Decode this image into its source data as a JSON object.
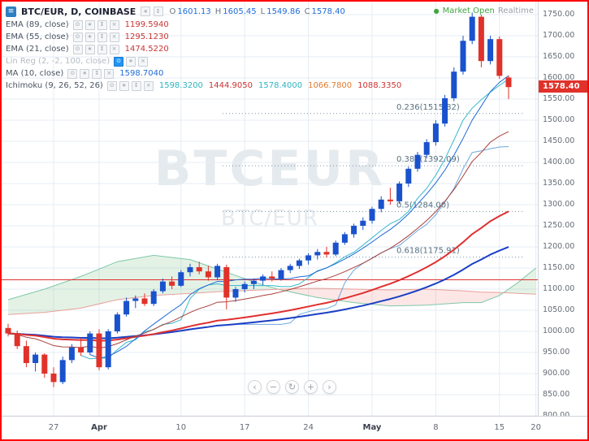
{
  "header": {
    "menu_icon": "menu-icon",
    "symbol_title": "BTC/EUR, D, COINBASE",
    "header_buttons": [
      "gear",
      "arrows"
    ],
    "ohlc": [
      {
        "label": "O",
        "value": "1601.13"
      },
      {
        "label": "H",
        "value": "1605.45"
      },
      {
        "label": "L",
        "value": "1549.86"
      },
      {
        "label": "C",
        "value": "1578.40"
      }
    ],
    "market_status": {
      "open_label": "Market Open",
      "realtime_label": "Realtime",
      "status_color": "#3fa63f"
    }
  },
  "indicators": [
    {
      "name": "EMA (89, close)",
      "buttons": [
        "eye",
        "gear",
        "arrows",
        "close"
      ],
      "disabled": false,
      "values": [
        {
          "text": "1199.5940",
          "color": "#cc3333"
        }
      ]
    },
    {
      "name": "EMA (55, close)",
      "buttons": [
        "eye",
        "gear",
        "arrows",
        "close"
      ],
      "disabled": false,
      "values": [
        {
          "text": "1295.1230",
          "color": "#cc3333"
        }
      ]
    },
    {
      "name": "EMA (21, close)",
      "buttons": [
        "eye",
        "gear",
        "arrows",
        "close"
      ],
      "disabled": false,
      "values": [
        {
          "text": "1474.5220",
          "color": "#cc3333"
        }
      ]
    },
    {
      "name": "Lin Reg (2, -2, 100, close)",
      "buttons": [
        "eye",
        "gear",
        "close"
      ],
      "disabled": true,
      "active_button": "eye",
      "values": []
    },
    {
      "name": "MA (10, close)",
      "buttons": [
        "eye",
        "gear",
        "arrows",
        "close"
      ],
      "disabled": false,
      "values": [
        {
          "text": "1598.7040",
          "color": "#1e6bd6"
        }
      ]
    },
    {
      "name": "Ichimoku (9, 26, 52, 26)",
      "buttons": [
        "eye",
        "gear",
        "arrows",
        "close"
      ],
      "disabled": false,
      "values": [
        {
          "text": "1598.3200",
          "color": "#2eb5c0"
        },
        {
          "text": "1444.9050",
          "color": "#cc3333"
        },
        {
          "text": "1578.4000",
          "color": "#2eb5c0"
        },
        {
          "text": "1066.7800",
          "color": "#e07b2f"
        },
        {
          "text": "1088.3350",
          "color": "#cc3333"
        }
      ]
    }
  ],
  "watermark": {
    "line1": "BTCEUR",
    "line2": "BTC/EUR"
  },
  "nav_buttons": [
    {
      "name": "scroll-left",
      "glyph": "‹"
    },
    {
      "name": "zoom-out",
      "glyph": "−"
    },
    {
      "name": "reset-view",
      "glyph": "↻"
    },
    {
      "name": "zoom-in",
      "glyph": "+"
    },
    {
      "name": "scroll-right",
      "glyph": "›"
    }
  ],
  "chart_data": {
    "type": "candlestick",
    "title": "BTC/EUR Daily, Coinbase",
    "interval": "D",
    "exchange": "COINBASE",
    "last_price": "1578.40",
    "price_axis": {
      "min": 800,
      "max": 1750,
      "step": 50
    },
    "time_ticks": [
      {
        "label": "27",
        "day": 5
      },
      {
        "label": "Apr",
        "day": 10,
        "month": true
      },
      {
        "label": "10",
        "day": 19
      },
      {
        "label": "17",
        "day": 26
      },
      {
        "label": "24",
        "day": 33
      },
      {
        "label": "May",
        "day": 40,
        "month": true
      },
      {
        "label": "8",
        "day": 47
      },
      {
        "label": "15",
        "day": 54
      },
      {
        "label": "20",
        "day": 58
      }
    ],
    "candles": [
      [
        1008,
        1018,
        988,
        995
      ],
      [
        995,
        1002,
        958,
        965
      ],
      [
        965,
        978,
        915,
        925
      ],
      [
        925,
        950,
        905,
        945
      ],
      [
        945,
        948,
        890,
        900
      ],
      [
        900,
        915,
        868,
        880
      ],
      [
        880,
        940,
        875,
        932
      ],
      [
        932,
        970,
        925,
        962
      ],
      [
        962,
        985,
        942,
        950
      ],
      [
        950,
        1000,
        945,
        995
      ],
      [
        995,
        1005,
        908,
        915
      ],
      [
        915,
        1005,
        910,
        1000
      ],
      [
        1000,
        1045,
        995,
        1040
      ],
      [
        1040,
        1080,
        1035,
        1072
      ],
      [
        1072,
        1085,
        1055,
        1078
      ],
      [
        1078,
        1090,
        1060,
        1065
      ],
      [
        1065,
        1100,
        1060,
        1095
      ],
      [
        1095,
        1125,
        1090,
        1118
      ],
      [
        1118,
        1130,
        1100,
        1108
      ],
      [
        1108,
        1145,
        1105,
        1140
      ],
      [
        1140,
        1160,
        1130,
        1152
      ],
      [
        1152,
        1165,
        1135,
        1142
      ],
      [
        1142,
        1155,
        1120,
        1128
      ],
      [
        1128,
        1160,
        1122,
        1155
      ],
      [
        1152,
        1158,
        1052,
        1080
      ],
      [
        1080,
        1105,
        1070,
        1100
      ],
      [
        1100,
        1118,
        1092,
        1112
      ],
      [
        1112,
        1125,
        1100,
        1120
      ],
      [
        1120,
        1135,
        1110,
        1130
      ],
      [
        1130,
        1142,
        1118,
        1125
      ],
      [
        1125,
        1150,
        1120,
        1145
      ],
      [
        1145,
        1160,
        1138,
        1155
      ],
      [
        1155,
        1172,
        1148,
        1168
      ],
      [
        1168,
        1185,
        1158,
        1180
      ],
      [
        1180,
        1195,
        1170,
        1188
      ],
      [
        1188,
        1200,
        1175,
        1182
      ],
      [
        1182,
        1215,
        1178,
        1210
      ],
      [
        1210,
        1235,
        1205,
        1230
      ],
      [
        1230,
        1255,
        1222,
        1250
      ],
      [
        1250,
        1270,
        1240,
        1262
      ],
      [
        1262,
        1295,
        1255,
        1290
      ],
      [
        1290,
        1320,
        1282,
        1312
      ],
      [
        1312,
        1340,
        1300,
        1308
      ],
      [
        1308,
        1355,
        1302,
        1350
      ],
      [
        1350,
        1390,
        1342,
        1385
      ],
      [
        1385,
        1425,
        1378,
        1418
      ],
      [
        1418,
        1455,
        1410,
        1448
      ],
      [
        1448,
        1500,
        1440,
        1492
      ],
      [
        1492,
        1560,
        1485,
        1552
      ],
      [
        1552,
        1625,
        1545,
        1615
      ],
      [
        1615,
        1700,
        1608,
        1688
      ],
      [
        1688,
        1755,
        1680,
        1745
      ],
      [
        1745,
        1750,
        1625,
        1640
      ],
      [
        1640,
        1700,
        1632,
        1692
      ],
      [
        1692,
        1698,
        1598,
        1605
      ],
      [
        1601.13,
        1605.45,
        1549.86,
        1578.4
      ]
    ],
    "overlays": {
      "ema": [
        {
          "period": 89,
          "color": "#1a3fc4",
          "width": 2
        },
        {
          "period": 55,
          "color": "#e03030",
          "width": 2
        },
        {
          "period": 21,
          "color": "#a8403a",
          "width": 1
        }
      ],
      "sma": [
        {
          "period": 10,
          "color": "#1e6bd6",
          "width": 1
        }
      ],
      "ichimoku": {
        "tenkan_period": 9,
        "kijun_period": 26,
        "tenkan_color": "#35b8cc",
        "kijun_color": "#6fa8dc",
        "cloud_up_color": "rgba(103,183,119,0.18)",
        "cloud_down_color": "rgba(235,106,100,0.16)",
        "senkou_a_color": "#7fc8a9",
        "senkou_b_color": "#e8a09a",
        "cloud": [
          [
            0,
            1075,
            1040
          ],
          [
            4,
            1100,
            1045
          ],
          [
            8,
            1130,
            1055
          ],
          [
            12,
            1165,
            1075
          ],
          [
            16,
            1180,
            1085
          ],
          [
            20,
            1170,
            1090
          ],
          [
            24,
            1140,
            1095
          ],
          [
            28,
            1110,
            1098
          ],
          [
            30,
            1098,
            1100
          ],
          [
            34,
            1080,
            1102
          ],
          [
            38,
            1068,
            1100
          ],
          [
            42,
            1060,
            1098
          ],
          [
            46,
            1062,
            1100
          ],
          [
            50,
            1068,
            1096
          ],
          [
            52,
            1068,
            1093
          ],
          [
            54,
            1085,
            1092
          ],
          [
            56,
            1115,
            1090
          ],
          [
            58,
            1150,
            1088
          ]
        ]
      },
      "fib_levels": [
        {
          "label": "0.236(1515.82)",
          "price": 1515.82
        },
        {
          "label": "0.382(1392.09)",
          "price": 1392.09
        },
        {
          "label": "0.5(1284.00)",
          "price": 1284
        },
        {
          "label": "0.618(1175.91)",
          "price": 1175.91
        }
      ],
      "hline": {
        "price": 1122,
        "color": "#e03030"
      }
    },
    "colors": {
      "up": "#1952cc",
      "down": "#e0322a",
      "grid": "#e4ecf4",
      "axis_text": "#656b74",
      "price_tag_bg": "#e0322a",
      "fib_line": "#7d93a3",
      "fib_text": "#56707f"
    }
  }
}
